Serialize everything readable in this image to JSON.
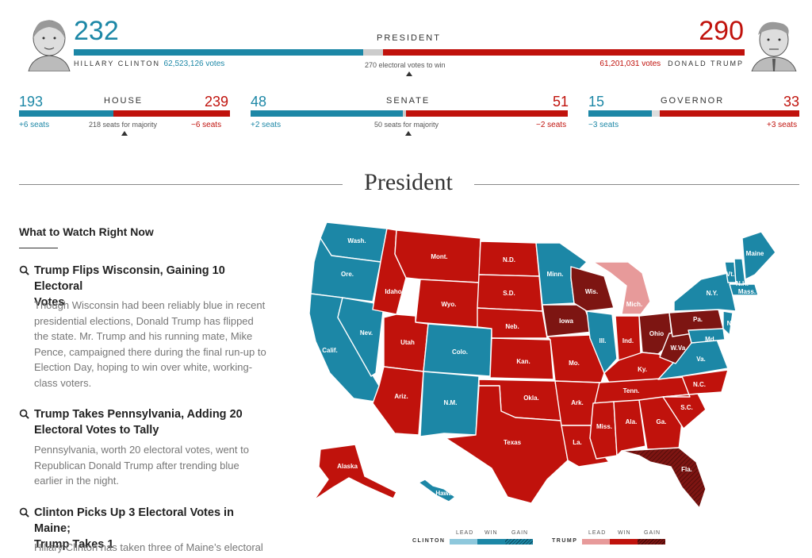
{
  "president": {
    "label": "PRESIDENT",
    "majority_note": "270 electoral votes to win",
    "clinton": {
      "ev": "232",
      "name": "HILLARY CLINTON",
      "votes": "62,523,126 votes",
      "ev_share": 0.431
    },
    "trump": {
      "ev": "290",
      "name": "DONALD TRUMP",
      "votes": "61,201,031 votes",
      "ev_share": 0.539
    }
  },
  "house": {
    "label": "HOUSE",
    "dem": "193",
    "rep": "239",
    "dem_change": "+6 seats",
    "rep_change": "−6 seats",
    "majority": "218 seats for majority"
  },
  "senate": {
    "label": "SENATE",
    "dem": "48",
    "rep": "51",
    "dem_change": "+2 seats",
    "rep_change": "−2 seats",
    "majority": "50 seats for majority"
  },
  "governor": {
    "label": "GOVERNOR",
    "dem": "15",
    "rep": "33",
    "dem_change": "−3 seats",
    "rep_change": "+3 seats"
  },
  "section_title": "President",
  "sidebar": {
    "heading": "What to Watch Right Now",
    "articles": [
      {
        "title_l1": "Trump Flips Wisconsin, Gaining 10 Electoral",
        "title_l2": "Votes",
        "body": [
          "Though Wisconsin had been reliably blue in recent",
          "presidential elections, Donald Trump has flipped",
          "the state. Mr. Trump and his running mate, Mike",
          "Pence, campaigned there during the final run-up to",
          "Election Day, hoping to win over white, working-",
          "class voters."
        ]
      },
      {
        "title_l1": "Trump Takes Pennsylvania, Adding 20",
        "title_l2": "Electoral Votes to Tally",
        "body": [
          "Pennsylvania, worth 20 electoral votes, went to",
          "Republican Donald Trump after trending blue",
          "earlier in the night."
        ]
      },
      {
        "title_l1": "Clinton Picks Up 3 Electoral Votes in Maine;",
        "title_l2": "Trump Takes 1",
        "body": [
          "Hillary Clinton has taken three of Maine’s electoral"
        ]
      }
    ]
  },
  "map": {
    "states": {
      "wash": "Wash.",
      "ore": "Ore.",
      "calif": "Calif.",
      "nev": "Nev.",
      "idaho": "Idaho",
      "mont": "Mont.",
      "wyo": "Wyo.",
      "utah": "Utah",
      "ariz": "Ariz.",
      "colo": "Colo.",
      "nm": "N.M.",
      "nd": "N.D.",
      "sd": "S.D.",
      "neb": "Neb.",
      "kan": "Kan.",
      "okla": "Okla.",
      "texas": "Texas",
      "minn": "Minn.",
      "iowa": "Iowa",
      "mo": "Mo.",
      "ark": "Ark.",
      "la": "La.",
      "wis": "Wis.",
      "ill": "Ill.",
      "mich": "Mich.",
      "ind": "Ind.",
      "ohio": "Ohio",
      "ky": "Ky.",
      "tenn": "Tenn.",
      "miss": "Miss.",
      "ala": "Ala.",
      "ga": "Ga.",
      "fla": "Fla.",
      "sc": "S.C.",
      "nc": "N.C.",
      "va": "Va.",
      "wva": "W.Va.",
      "pa": "Pa.",
      "ny": "N.Y.",
      "nj": "N.J.",
      "md": "Md.",
      "vt": "Vt.",
      "nh": "N.H.",
      "mass": "Mass.",
      "maine": "Maine",
      "alaska": "Alaska",
      "hawaii": "Hawaii"
    }
  },
  "legend": {
    "clinton": "CLINTON",
    "trump": "TRUMP",
    "lead": "LEAD",
    "win": "WIN",
    "gain": "GAIN"
  },
  "colors": {
    "dem": "#1c87a6",
    "dem_lead": "#8ec8dc",
    "rep": "#c0120c",
    "rep_lead": "#e79a9a",
    "rep_gain": "#7d1512"
  }
}
